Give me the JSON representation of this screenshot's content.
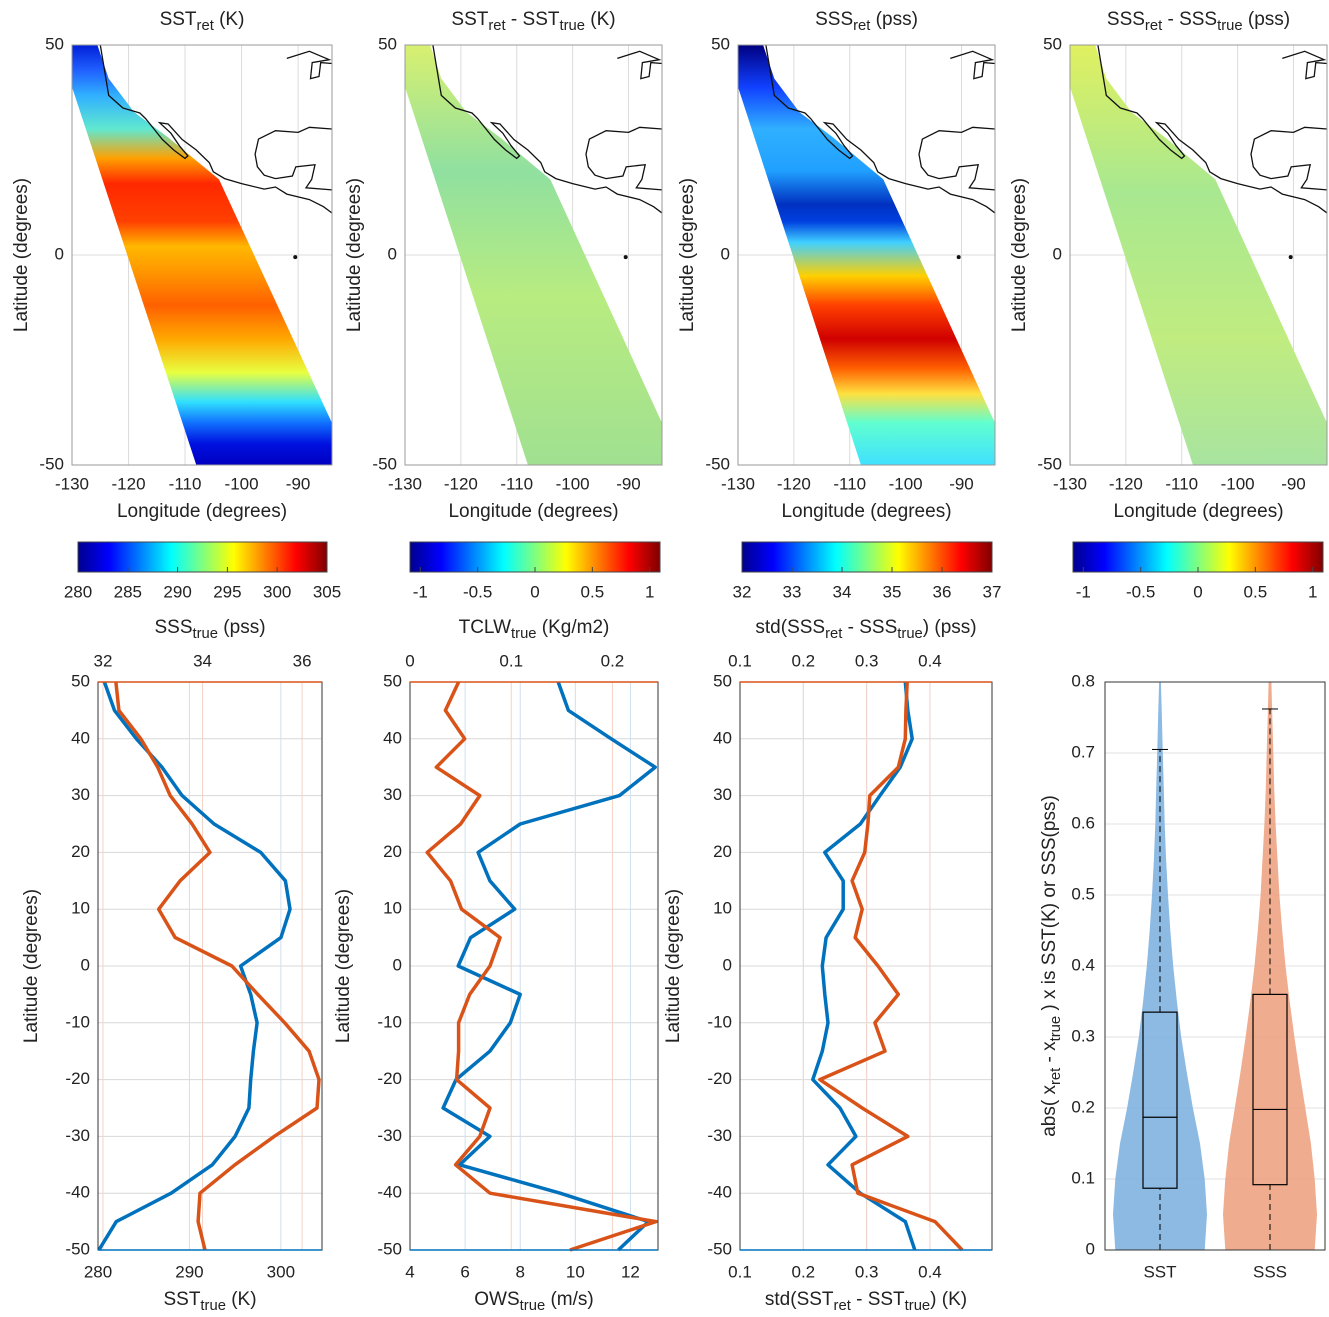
{
  "chart_data": [
    {
      "type": "map",
      "title": [
        "SST",
        "ret",
        " (K)"
      ],
      "xlabel": "Longitude (degrees)",
      "ylabel": "Latitude (degrees)",
      "xlim": [
        -130,
        -84
      ],
      "ylim": [
        -50,
        50
      ],
      "xticks": [
        -130,
        -120,
        -110,
        -100,
        -90
      ],
      "yticks": [
        -50,
        0,
        50
      ],
      "clim": [
        280,
        305
      ],
      "cticks": [
        280,
        285,
        290,
        295,
        300,
        305
      ],
      "colormap": "jet"
    },
    {
      "type": "map",
      "title": [
        "SST",
        "ret",
        " - SST",
        "true",
        " (K)"
      ],
      "xlabel": "Longitude (degrees)",
      "ylabel": "Latitude (degrees)",
      "xlim": [
        -130,
        -84
      ],
      "ylim": [
        -50,
        50
      ],
      "xticks": [
        -130,
        -120,
        -110,
        -100,
        -90
      ],
      "yticks": [
        -50,
        0,
        50
      ],
      "clim": [
        -1.09,
        1.09
      ],
      "cticks": [
        -1,
        -0.5,
        0,
        0.5,
        1
      ],
      "colormap": "jet"
    },
    {
      "type": "map",
      "title": [
        "SSS",
        "ret",
        " (pss)"
      ],
      "xlabel": "Longitude (degrees)",
      "ylabel": "Latitude (degrees)",
      "xlim": [
        -130,
        -84
      ],
      "ylim": [
        -50,
        50
      ],
      "xticks": [
        -130,
        -120,
        -110,
        -100,
        -90
      ],
      "yticks": [
        -50,
        0,
        50
      ],
      "clim": [
        32,
        37
      ],
      "cticks": [
        32,
        33,
        34,
        35,
        36,
        37
      ],
      "colormap": "jet"
    },
    {
      "type": "map",
      "title": [
        "SSS",
        "ret",
        " - SSS",
        "true",
        " (pss)"
      ],
      "xlabel": "Longitude (degrees)",
      "ylabel": "Latitude (degrees)",
      "xlim": [
        -130,
        -84
      ],
      "ylim": [
        -50,
        50
      ],
      "xticks": [
        -130,
        -120,
        -110,
        -100,
        -90
      ],
      "yticks": [
        -50,
        0,
        50
      ],
      "clim": [
        -1.09,
        1.09
      ],
      "cticks": [
        -1,
        -0.5,
        0,
        0.5,
        1
      ],
      "colormap": "jet"
    },
    {
      "type": "line",
      "xlabel": [
        "SST",
        "true",
        " (K)"
      ],
      "x2label": [
        "SSS",
        "true",
        " (pss)"
      ],
      "ylabel": "Latitude (degrees)",
      "xlim": [
        280,
        304.5
      ],
      "xticks": [
        280,
        290,
        300
      ],
      "x2lim": [
        31.9,
        36.4
      ],
      "x2ticks": [
        32,
        34,
        36
      ],
      "ylim": [
        -50,
        50
      ],
      "yticks": [
        -50,
        -40,
        -30,
        -20,
        -10,
        0,
        10,
        20,
        30,
        40,
        50
      ],
      "grid": true,
      "y": [
        50,
        45,
        40,
        35,
        30,
        25,
        20,
        15,
        10,
        5,
        0,
        -5,
        -10,
        -15,
        -20,
        -25,
        -30,
        -35,
        -40,
        -45,
        -50
      ],
      "series": [
        {
          "color": "#0072BD",
          "values": [
            280.7,
            281.8,
            284.2,
            287,
            289.2,
            292.7,
            297.8,
            300.5,
            301,
            300,
            295.6,
            296.7,
            297.4,
            297,
            296.7,
            296.5,
            295,
            292.5,
            288,
            282,
            280.1
          ]
        },
        {
          "color": "#D95319",
          "axis": "x2",
          "values": [
            32.26,
            32.32,
            32.76,
            33.1,
            33.35,
            33.79,
            34.15,
            33.55,
            33.12,
            33.45,
            34.59,
            35.11,
            35.65,
            36.14,
            36.34,
            36.3,
            35.44,
            34.65,
            33.95,
            33.91,
            34.05
          ]
        }
      ]
    },
    {
      "type": "line",
      "xlabel": [
        "OWS",
        "true",
        " (m/s)"
      ],
      "x2label": [
        "TCLW",
        "true",
        " (Kg/m2)"
      ],
      "ylabel": "Latitude (degrees)",
      "xlim": [
        4,
        13
      ],
      "xticks": [
        4,
        6,
        8,
        10,
        12
      ],
      "x2lim": [
        0,
        0.245
      ],
      "x2ticks": [
        0,
        0.1,
        0.2
      ],
      "ylim": [
        -50,
        50
      ],
      "yticks": [
        -50,
        -40,
        -30,
        -20,
        -10,
        0,
        10,
        20,
        30,
        40,
        50
      ],
      "grid": true,
      "y": [
        50,
        45,
        40,
        35,
        30,
        25,
        20,
        15,
        10,
        5,
        0,
        -5,
        -10,
        -15,
        -20,
        -25,
        -30,
        -35,
        -40,
        -45,
        -50
      ],
      "series": [
        {
          "color": "#0072BD",
          "values": [
            9.38,
            9.75,
            11.3,
            12.9,
            11.6,
            8.0,
            6.47,
            6.9,
            7.8,
            6.2,
            5.75,
            8.0,
            7.64,
            6.9,
            5.67,
            5.2,
            6.9,
            5.8,
            9.45,
            12.65,
            11.56
          ]
        },
        {
          "color": "#D95319",
          "axis": "x2",
          "values": [
            0.048,
            0.035,
            0.054,
            0.026,
            0.069,
            0.05,
            0.017,
            0.04,
            0.051,
            0.089,
            0.079,
            0.059,
            0.048,
            0.048,
            0.046,
            0.079,
            0.069,
            0.045,
            0.079,
            0.243,
            0.158
          ]
        }
      ]
    },
    {
      "type": "line",
      "xlabel": [
        "std(SST",
        "ret",
        " - SST",
        "true",
        ") (K)"
      ],
      "x2label": [
        "std(SSS",
        "ret",
        " - SSS",
        "true",
        ") (pss)"
      ],
      "ylabel": "Latitude (degrees)",
      "xlim": [
        0.1,
        0.498
      ],
      "xticks": [
        0.1,
        0.2,
        0.3,
        0.4
      ],
      "x2lim": [
        0.1,
        0.498
      ],
      "x2ticks": [
        0.1,
        0.2,
        0.3,
        0.4
      ],
      "ylim": [
        -50,
        50
      ],
      "yticks": [
        -50,
        -40,
        -30,
        -20,
        -10,
        0,
        10,
        20,
        30,
        40,
        50
      ],
      "grid": true,
      "y": [
        50,
        45,
        40,
        35,
        30,
        25,
        20,
        15,
        10,
        5,
        0,
        -5,
        -10,
        -15,
        -20,
        -25,
        -30,
        -35,
        -40,
        -45,
        -50
      ],
      "series": [
        {
          "color": "#0072BD",
          "values": [
            0.361,
            0.365,
            0.372,
            0.353,
            0.321,
            0.29,
            0.234,
            0.263,
            0.263,
            0.236,
            0.23,
            0.234,
            0.239,
            0.23,
            0.215,
            0.258,
            0.283,
            0.239,
            0.29,
            0.361,
            0.376
          ]
        },
        {
          "color": "#D95319",
          "axis": "x2",
          "values": [
            0.364,
            0.362,
            0.361,
            0.35,
            0.305,
            0.302,
            0.297,
            0.277,
            0.293,
            0.282,
            0.318,
            0.35,
            0.313,
            0.329,
            0.226,
            0.293,
            0.365,
            0.277,
            0.286,
            0.408,
            0.451
          ]
        }
      ]
    },
    {
      "type": "violin",
      "ylabel": [
        "abs( x",
        "ret",
        " - x",
        "true",
        " )   x is SST(K) or SSS(pss)"
      ],
      "categories": [
        "SST",
        "SSS"
      ],
      "ylim": [
        0,
        0.8
      ],
      "yticks": [
        0,
        0.1,
        0.2,
        0.3,
        0.4,
        0.5,
        0.6,
        0.7,
        0.8
      ],
      "grid": true,
      "kde_y": [
        0,
        0.05,
        0.1,
        0.15,
        0.2,
        0.25,
        0.3,
        0.35,
        0.4,
        0.45,
        0.5,
        0.55,
        0.6,
        0.65,
        0.7,
        0.75,
        0.8
      ],
      "series": [
        {
          "color": "#7fb2e0",
          "whisker_low": 0,
          "q1": 0.087,
          "median": 0.187,
          "q3": 0.335,
          "whisker_high": 0.705,
          "density": [
            0.95,
            1.0,
            0.95,
            0.85,
            0.7,
            0.57,
            0.45,
            0.36,
            0.28,
            0.22,
            0.17,
            0.13,
            0.1,
            0.08,
            0.06,
            0.04,
            0.02
          ]
        },
        {
          "color": "#eda383",
          "whisker_low": 0,
          "q1": 0.092,
          "median": 0.198,
          "q3": 0.36,
          "whisker_high": 0.762,
          "density": [
            0.95,
            1.0,
            0.95,
            0.87,
            0.75,
            0.63,
            0.52,
            0.42,
            0.33,
            0.26,
            0.2,
            0.16,
            0.12,
            0.09,
            0.07,
            0.05,
            0.03
          ]
        }
      ]
    }
  ]
}
